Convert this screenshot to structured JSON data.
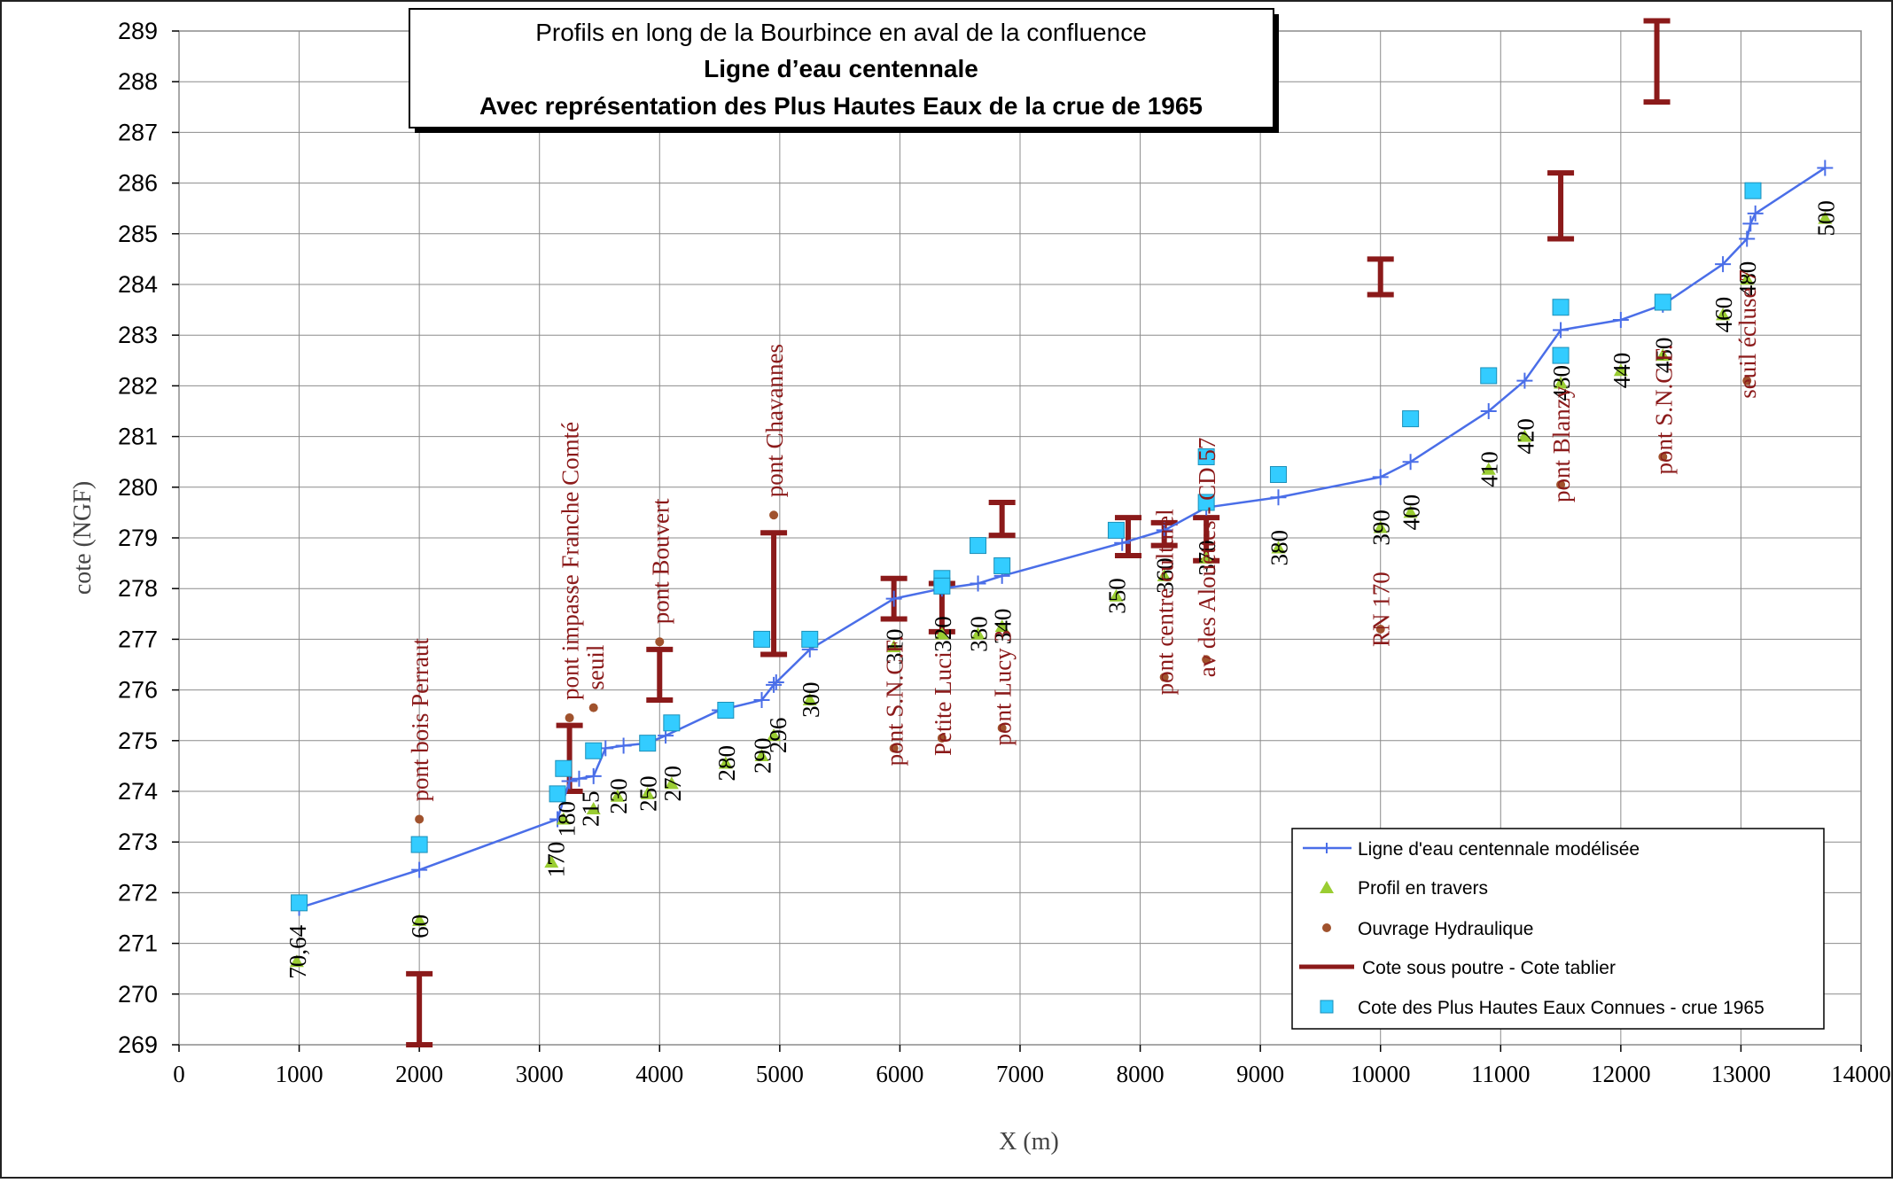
{
  "chart_data": {
    "type": "scatter",
    "title": [
      "Profils en long de la Bourbince en aval de la confluence",
      "Ligne d’eau centennale",
      "Avec représentation des Plus Hautes Eaux de la crue de 1965"
    ],
    "xlabel": "X (m)",
    "ylabel": "cote (NGF)",
    "xlim": [
      0,
      14000
    ],
    "ylim": [
      269,
      289
    ],
    "xticks": [
      0,
      1000,
      2000,
      3000,
      4000,
      5000,
      6000,
      7000,
      8000,
      9000,
      10000,
      11000,
      12000,
      13000,
      14000
    ],
    "yticks": [
      269,
      270,
      271,
      272,
      273,
      274,
      275,
      276,
      277,
      278,
      279,
      280,
      281,
      282,
      283,
      284,
      285,
      286,
      287,
      288,
      289
    ],
    "grid": true,
    "legend_position": "bottom-right",
    "colors": {
      "line": "#4a6ee8",
      "profil": "#9acd32",
      "ouvrage": "#a0522d",
      "poutre": "#8b1a1a",
      "phe": "#33ccff",
      "ann_profil": "#000000",
      "ann_ouvrage": "#8b1a1a"
    },
    "series": [
      {
        "name": "Ligne d'eau centennale modélisée",
        "kind": "line",
        "points": [
          [
            1000,
            271.7
          ],
          [
            2000,
            272.45
          ],
          [
            3150,
            273.45
          ],
          [
            3250,
            274.2
          ],
          [
            3330,
            274.25
          ],
          [
            3450,
            274.3
          ],
          [
            3550,
            274.85
          ],
          [
            3700,
            274.9
          ],
          [
            3900,
            274.95
          ],
          [
            4050,
            275.1
          ],
          [
            4500,
            275.6
          ],
          [
            4850,
            275.8
          ],
          [
            4950,
            276.1
          ],
          [
            4970,
            276.15
          ],
          [
            5250,
            276.8
          ],
          [
            5950,
            277.8
          ],
          [
            6350,
            278.0
          ],
          [
            6650,
            278.1
          ],
          [
            6850,
            278.25
          ],
          [
            7850,
            278.9
          ],
          [
            8200,
            279.15
          ],
          [
            8550,
            279.6
          ],
          [
            9150,
            279.8
          ],
          [
            10000,
            280.2
          ],
          [
            10250,
            280.5
          ],
          [
            10900,
            281.5
          ],
          [
            11200,
            282.1
          ],
          [
            11500,
            283.1
          ],
          [
            12000,
            283.3
          ],
          [
            12350,
            283.6
          ],
          [
            12850,
            284.4
          ],
          [
            13050,
            284.9
          ],
          [
            13080,
            285.2
          ],
          [
            13120,
            285.4
          ],
          [
            13700,
            286.3
          ]
        ]
      },
      {
        "name": "Profil en travers",
        "kind": "triangle",
        "points": [
          [
            980,
            270.64
          ],
          [
            2000,
            271.45
          ],
          [
            3100,
            272.6
          ],
          [
            3200,
            273.45
          ],
          [
            3450,
            273.65
          ],
          [
            3650,
            273.9
          ],
          [
            3900,
            273.95
          ],
          [
            4100,
            274.15
          ],
          [
            4550,
            274.55
          ],
          [
            4850,
            274.7
          ],
          [
            4950,
            275.1
          ],
          [
            5250,
            275.8
          ],
          [
            5950,
            276.85
          ],
          [
            6350,
            277.1
          ],
          [
            6650,
            277.1
          ],
          [
            6850,
            277.25
          ],
          [
            7800,
            277.85
          ],
          [
            8200,
            278.25
          ],
          [
            8550,
            278.6
          ],
          [
            9150,
            278.8
          ],
          [
            10000,
            279.2
          ],
          [
            10250,
            279.5
          ],
          [
            10900,
            280.35
          ],
          [
            11200,
            281.0
          ],
          [
            11500,
            282.05
          ],
          [
            12000,
            282.3
          ],
          [
            12350,
            282.6
          ],
          [
            12850,
            283.4
          ],
          [
            13050,
            284.1
          ],
          [
            13700,
            285.3
          ]
        ]
      },
      {
        "name": "Ouvrage Hydraulique",
        "kind": "dot",
        "points": [
          [
            2000,
            273.45
          ],
          [
            3250,
            275.45
          ],
          [
            3450,
            275.65
          ],
          [
            4000,
            276.95
          ],
          [
            4950,
            279.45
          ],
          [
            5950,
            274.85
          ],
          [
            6350,
            275.05
          ],
          [
            6850,
            275.25
          ],
          [
            8200,
            276.25
          ],
          [
            8550,
            276.6
          ],
          [
            10000,
            277.2
          ],
          [
            11500,
            280.05
          ],
          [
            12350,
            280.6
          ],
          [
            13050,
            282.1
          ]
        ]
      },
      {
        "name": "Cote sous poutre - Cote tablier",
        "kind": "range",
        "ranges": [
          [
            2000,
            269.0,
            270.4
          ],
          [
            3250,
            274.0,
            275.3
          ],
          [
            4000,
            275.8,
            276.8
          ],
          [
            4950,
            276.7,
            279.1
          ],
          [
            5950,
            277.4,
            278.2
          ],
          [
            6350,
            277.15,
            278.1
          ],
          [
            6850,
            279.05,
            279.7
          ],
          [
            7900,
            278.65,
            279.4
          ],
          [
            8200,
            278.85,
            279.3
          ],
          [
            8550,
            278.55,
            279.4
          ],
          [
            10000,
            283.8,
            284.5
          ],
          [
            11500,
            284.9,
            286.2
          ],
          [
            12300,
            287.6,
            289.2
          ]
        ]
      },
      {
        "name": "Cote des Plus Hautes Eaux Connues - crue 1965",
        "kind": "square",
        "points": [
          [
            1000,
            271.8
          ],
          [
            2000,
            272.95
          ],
          [
            3150,
            273.95
          ],
          [
            3200,
            274.45
          ],
          [
            3450,
            274.8
          ],
          [
            3900,
            274.95
          ],
          [
            4100,
            275.35
          ],
          [
            4550,
            275.6
          ],
          [
            4850,
            277.0
          ],
          [
            5250,
            277.0
          ],
          [
            6350,
            278.2
          ],
          [
            6350,
            278.05
          ],
          [
            6650,
            278.85
          ],
          [
            6850,
            278.45
          ],
          [
            7800,
            279.15
          ],
          [
            8550,
            279.7
          ],
          [
            8550,
            280.6
          ],
          [
            9150,
            280.25
          ],
          [
            10250,
            281.35
          ],
          [
            10900,
            282.2
          ],
          [
            11500,
            282.6
          ],
          [
            11500,
            283.55
          ],
          [
            12350,
            283.65
          ],
          [
            13100,
            285.85
          ]
        ]
      }
    ],
    "annotations_profil": [
      {
        "text": "70,64",
        "x": 980,
        "y": 270.3
      },
      {
        "text": "60",
        "x": 2000,
        "y": 271.1
      },
      {
        "text": "170",
        "x": 3130,
        "y": 272.3
      },
      {
        "text": "180",
        "x": 3220,
        "y": 273.1
      },
      {
        "text": "215",
        "x": 3420,
        "y": 273.3
      },
      {
        "text": "230",
        "x": 3650,
        "y": 273.55
      },
      {
        "text": "250",
        "x": 3900,
        "y": 273.6
      },
      {
        "text": "270",
        "x": 4100,
        "y": 273.8
      },
      {
        "text": "280",
        "x": 4550,
        "y": 274.2
      },
      {
        "text": "290",
        "x": 4850,
        "y": 274.35
      },
      {
        "text": "296",
        "x": 4980,
        "y": 274.75
      },
      {
        "text": "300",
        "x": 5250,
        "y": 275.45
      },
      {
        "text": "310",
        "x": 5950,
        "y": 276.5
      },
      {
        "text": "320",
        "x": 6350,
        "y": 276.75
      },
      {
        "text": "330",
        "x": 6650,
        "y": 276.75
      },
      {
        "text": "340",
        "x": 6850,
        "y": 276.9
      },
      {
        "text": "350",
        "x": 7800,
        "y": 277.5
      },
      {
        "text": "360",
        "x": 8200,
        "y": 277.9
      },
      {
        "text": "370",
        "x": 8550,
        "y": 278.25
      },
      {
        "text": "380",
        "x": 9150,
        "y": 278.45
      },
      {
        "text": "390",
        "x": 10000,
        "y": 278.85
      },
      {
        "text": "400",
        "x": 10250,
        "y": 279.15
      },
      {
        "text": "410",
        "x": 10900,
        "y": 280.0
      },
      {
        "text": "420",
        "x": 11200,
        "y": 280.65
      },
      {
        "text": "430",
        "x": 11500,
        "y": 281.7
      },
      {
        "text": "440",
        "x": 12000,
        "y": 281.95
      },
      {
        "text": "450",
        "x": 12350,
        "y": 282.25
      },
      {
        "text": "460",
        "x": 12850,
        "y": 283.05
      },
      {
        "text": "480",
        "x": 13050,
        "y": 283.75
      },
      {
        "text": "500",
        "x": 13700,
        "y": 284.95
      }
    ],
    "annotations_ouvrage": [
      {
        "text": "pont bois Perraut",
        "x": 2000,
        "y": 273.8
      },
      {
        "text": "pont impasse Franche Comté",
        "x": 3250,
        "y": 275.8
      },
      {
        "text": "seuil",
        "x": 3460,
        "y": 276.0
      },
      {
        "text": "pont Bouvert",
        "x": 4000,
        "y": 277.3
      },
      {
        "text": "pont Chavannes",
        "x": 4950,
        "y": 279.8
      },
      {
        "text": "pont S.N.C.F.",
        "x": 5950,
        "y": 274.5
      },
      {
        "text": "Petite Luci",
        "x": 6350,
        "y": 274.7
      },
      {
        "text": "pont Lucy 3",
        "x": 6850,
        "y": 274.9
      },
      {
        "text": "pont centre culturel",
        "x": 8200,
        "y": 275.9
      },
      {
        "text": "av des Alouettes - CD 57",
        "x": 8550,
        "y": 276.25
      },
      {
        "text": "RN 170",
        "x": 10000,
        "y": 276.85
      },
      {
        "text": "pont Blanzy",
        "x": 11500,
        "y": 279.7
      },
      {
        "text": "pont S.N.C.F.",
        "x": 12350,
        "y": 280.25
      },
      {
        "text": "seuil écluse 7",
        "x": 13050,
        "y": 281.75
      }
    ]
  }
}
